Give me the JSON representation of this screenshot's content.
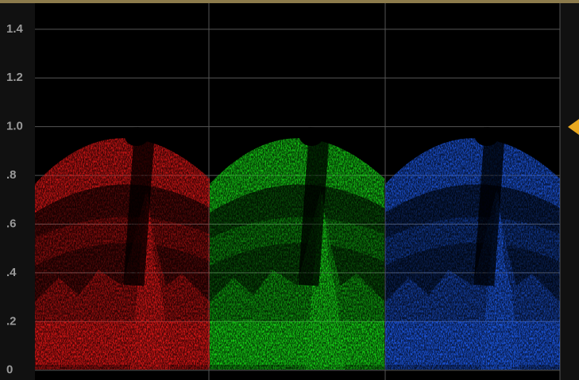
{
  "scope": {
    "ylim": [
      -0.04,
      1.52
    ],
    "ticks": [
      1.4,
      1.2,
      {
        "value": 1,
        "label": "1.0"
      },
      {
        "value": 0.8,
        "label": ".8"
      },
      {
        "value": 0.6,
        "label": ".6"
      },
      {
        "value": 0.4,
        "label": ".4"
      },
      {
        "value": 0.2,
        "label": ".2"
      },
      0
    ]
  }
}
